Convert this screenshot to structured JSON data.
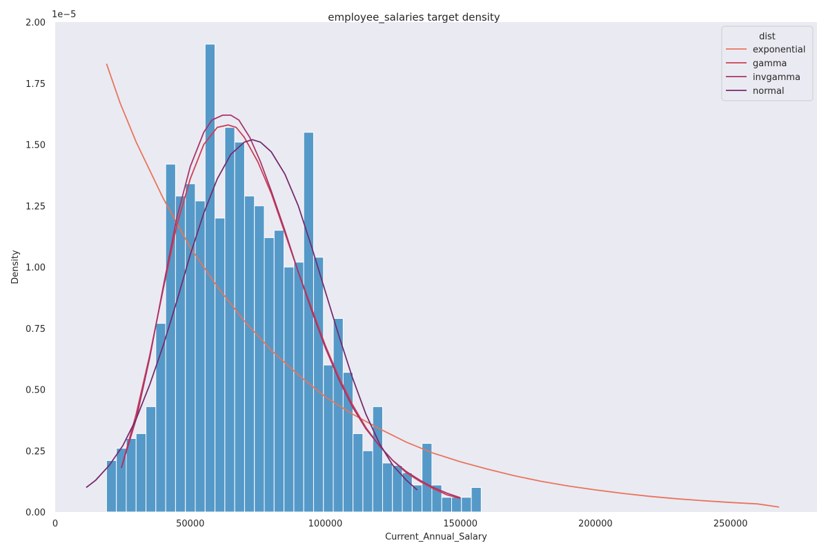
{
  "chart_data": {
    "type": "histogram",
    "title": "employee_salaries target density",
    "xlabel": "Current_Annual_Salary",
    "ylabel": "Density",
    "y_scale_label": "1e−5",
    "xlim": [
      0,
      282000
    ],
    "ylim": [
      0,
      2.0
    ],
    "x_ticks": [
      0,
      50000,
      100000,
      150000,
      200000,
      250000
    ],
    "y_ticks": [
      0.0,
      0.25,
      0.5,
      0.75,
      1.0,
      1.25,
      1.5,
      1.75,
      2.0
    ],
    "grid": false,
    "background": "#eaeaf2",
    "histogram": {
      "bin_start": 19000,
      "bin_width": 3650,
      "color": "#5599c8",
      "values": [
        0.21,
        0.26,
        0.3,
        0.32,
        0.43,
        0.77,
        1.42,
        1.29,
        1.34,
        1.27,
        1.91,
        1.2,
        1.57,
        1.51,
        1.29,
        1.25,
        1.12,
        1.15,
        1.0,
        1.02,
        1.55,
        1.04,
        0.6,
        0.79,
        0.57,
        0.32,
        0.25,
        0.43,
        0.2,
        0.19,
        0.16,
        0.11,
        0.28,
        0.11,
        0.06,
        0.06,
        0.06,
        0.1
      ]
    },
    "legend": {
      "title": "dist",
      "position": "top-right"
    },
    "series": [
      {
        "name": "exponential",
        "color": "#e8745b",
        "points": [
          [
            19000,
            1.83
          ],
          [
            24000,
            1.67
          ],
          [
            30000,
            1.51
          ],
          [
            40000,
            1.28
          ],
          [
            50000,
            1.08
          ],
          [
            60000,
            0.92
          ],
          [
            70000,
            0.78
          ],
          [
            80000,
            0.66
          ],
          [
            90000,
            0.56
          ],
          [
            100000,
            0.47
          ],
          [
            110000,
            0.4
          ],
          [
            120000,
            0.34
          ],
          [
            130000,
            0.285
          ],
          [
            140000,
            0.24
          ],
          [
            150000,
            0.205
          ],
          [
            160000,
            0.175
          ],
          [
            170000,
            0.148
          ],
          [
            180000,
            0.125
          ],
          [
            190000,
            0.106
          ],
          [
            200000,
            0.09
          ],
          [
            210000,
            0.076
          ],
          [
            220000,
            0.064
          ],
          [
            230000,
            0.054
          ],
          [
            240000,
            0.046
          ],
          [
            250000,
            0.039
          ],
          [
            260000,
            0.033
          ],
          [
            268000,
            0.02
          ]
        ]
      },
      {
        "name": "gamma",
        "color": "#cc3d53",
        "points": [
          [
            24500,
            0.18
          ],
          [
            30000,
            0.4
          ],
          [
            35000,
            0.64
          ],
          [
            40000,
            0.91
          ],
          [
            45000,
            1.17
          ],
          [
            50000,
            1.36
          ],
          [
            55000,
            1.5
          ],
          [
            60000,
            1.57
          ],
          [
            64000,
            1.58
          ],
          [
            67000,
            1.57
          ],
          [
            70000,
            1.53
          ],
          [
            75000,
            1.43
          ],
          [
            80000,
            1.3
          ],
          [
            85000,
            1.14
          ],
          [
            90000,
            0.98
          ],
          [
            95000,
            0.83
          ],
          [
            100000,
            0.68
          ],
          [
            105000,
            0.55
          ],
          [
            110000,
            0.44
          ],
          [
            115000,
            0.345
          ],
          [
            120000,
            0.27
          ],
          [
            125000,
            0.21
          ],
          [
            130000,
            0.16
          ],
          [
            135000,
            0.125
          ],
          [
            140000,
            0.095
          ],
          [
            145000,
            0.07
          ],
          [
            150000,
            0.055
          ]
        ]
      },
      {
        "name": "invgamma",
        "color": "#a83369",
        "points": [
          [
            24500,
            0.18
          ],
          [
            30000,
            0.38
          ],
          [
            35000,
            0.63
          ],
          [
            40000,
            0.92
          ],
          [
            45000,
            1.2
          ],
          [
            50000,
            1.41
          ],
          [
            55000,
            1.55
          ],
          [
            58000,
            1.6
          ],
          [
            62000,
            1.62
          ],
          [
            65000,
            1.62
          ],
          [
            68000,
            1.6
          ],
          [
            72000,
            1.53
          ],
          [
            76000,
            1.43
          ],
          [
            80000,
            1.31
          ],
          [
            85000,
            1.15
          ],
          [
            90000,
            0.98
          ],
          [
            95000,
            0.82
          ],
          [
            100000,
            0.67
          ],
          [
            105000,
            0.54
          ],
          [
            110000,
            0.43
          ],
          [
            115000,
            0.34
          ],
          [
            120000,
            0.27
          ],
          [
            125000,
            0.21
          ],
          [
            130000,
            0.165
          ],
          [
            135000,
            0.13
          ],
          [
            140000,
            0.1
          ],
          [
            145000,
            0.077
          ],
          [
            150000,
            0.058
          ]
        ]
      },
      {
        "name": "normal",
        "color": "#742a6c",
        "points": [
          [
            11500,
            0.1
          ],
          [
            15000,
            0.13
          ],
          [
            20000,
            0.19
          ],
          [
            25000,
            0.27
          ],
          [
            30000,
            0.38
          ],
          [
            35000,
            0.52
          ],
          [
            40000,
            0.68
          ],
          [
            45000,
            0.86
          ],
          [
            50000,
            1.05
          ],
          [
            55000,
            1.22
          ],
          [
            60000,
            1.36
          ],
          [
            65000,
            1.46
          ],
          [
            70000,
            1.51
          ],
          [
            73000,
            1.52
          ],
          [
            76000,
            1.51
          ],
          [
            80000,
            1.47
          ],
          [
            85000,
            1.38
          ],
          [
            90000,
            1.25
          ],
          [
            95000,
            1.08
          ],
          [
            100000,
            0.9
          ],
          [
            105000,
            0.72
          ],
          [
            110000,
            0.55
          ],
          [
            115000,
            0.4
          ],
          [
            120000,
            0.28
          ],
          [
            125000,
            0.19
          ],
          [
            130000,
            0.13
          ],
          [
            134000,
            0.09
          ]
        ]
      }
    ]
  }
}
